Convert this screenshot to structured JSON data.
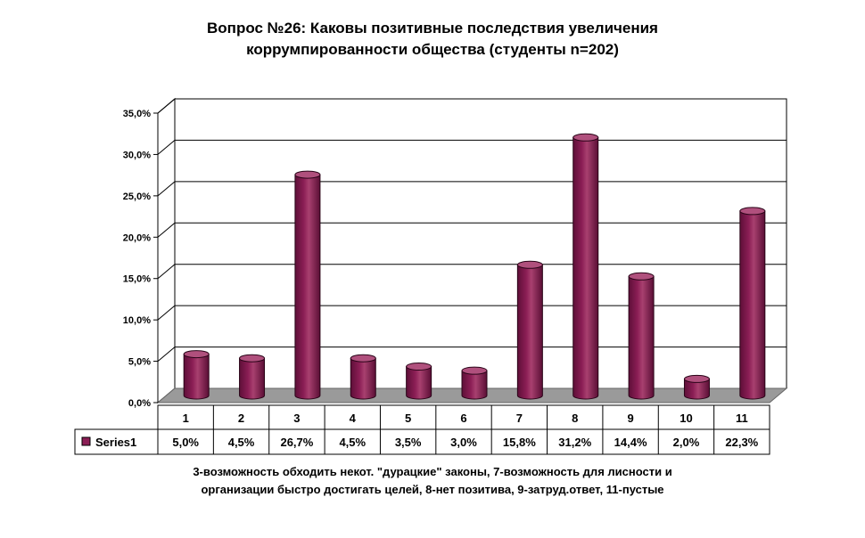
{
  "chart_data": {
    "type": "bar",
    "title_lines": [
      "Вопрос №26: Каковы позитивные последствия увеличения",
      "коррумпированности общества (студенты n=202)"
    ],
    "categories": [
      "1",
      "2",
      "3",
      "4",
      "5",
      "6",
      "7",
      "8",
      "9",
      "10",
      "11"
    ],
    "series": [
      {
        "name": "Series1",
        "values": [
          5.0,
          4.5,
          26.7,
          4.5,
          3.5,
          3.0,
          15.8,
          31.2,
          14.4,
          2.0,
          22.3
        ],
        "labels": [
          "5,0%",
          "4,5%",
          "26,7%",
          "4,5%",
          "3,5%",
          "3,0%",
          "15,8%",
          "31,2%",
          "14,4%",
          "2,0%",
          "22,3%"
        ]
      }
    ],
    "yticks": [
      0,
      5,
      10,
      15,
      20,
      25,
      30,
      35
    ],
    "ytick_labels": [
      "0,0%",
      "5,0%",
      "10,0%",
      "15,0%",
      "20,0%",
      "25,0%",
      "30,0%",
      "35,0%"
    ],
    "ylim": [
      0,
      35
    ],
    "grid": true,
    "legend": "data-table",
    "bar_style": "3d-cylinder",
    "color": "#8B1E55",
    "note_lines": [
      "3-возможность обходить некот. \"дурацкие\" законы, 7-возможность для лисности и",
      "организации быстро достигать целей, 8-нет позитива, 9-затруд.ответ, 11-пустые"
    ]
  }
}
